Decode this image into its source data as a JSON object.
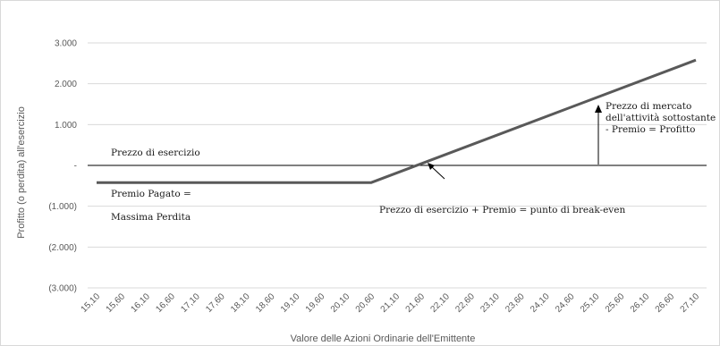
{
  "chart_data": {
    "type": "line",
    "ylabel": "Profitto (o perdita) all'esercizio",
    "xlabel": "Valore delle Azioni Ordinarie dell'Emittente",
    "ylim": [
      -3000,
      3000
    ],
    "yticks": [
      3000,
      2000,
      1000,
      0,
      -1000,
      -2000,
      -3000
    ],
    "ytick_labels": [
      "3.000",
      "2.000",
      "1.000",
      "-",
      "(1.000)",
      "(2.000)",
      "(3.000)"
    ],
    "grid": true,
    "x_labels": [
      "15,10",
      "15,60",
      "16,10",
      "16,60",
      "17,10",
      "17,60",
      "18,10",
      "18,60",
      "19,10",
      "19,60",
      "20,10",
      "20,60",
      "21,10",
      "21,60",
      "22,10",
      "22,60",
      "23,10",
      "23,60",
      "24,10",
      "24,60",
      "25,10",
      "25,60",
      "26,10",
      "26,60",
      "27,10"
    ],
    "series": [
      {
        "color": "#595959",
        "x": [
          15.1,
          20.6,
          27.1
        ],
        "y": [
          -420,
          -420,
          2580
        ]
      }
    ],
    "annotations": {
      "strike": "Prezzo di esercizio",
      "premium_line1": "Premio Pagato =",
      "premium_line2": "Massima Perdita",
      "breakeven": "Prezzo di esercizio + Premio = punto di break-even",
      "profit_line1": "Prezzo di mercato",
      "profit_line2": "dell'attività sottostante",
      "profit_line3": "- Premio = Profitto"
    }
  }
}
